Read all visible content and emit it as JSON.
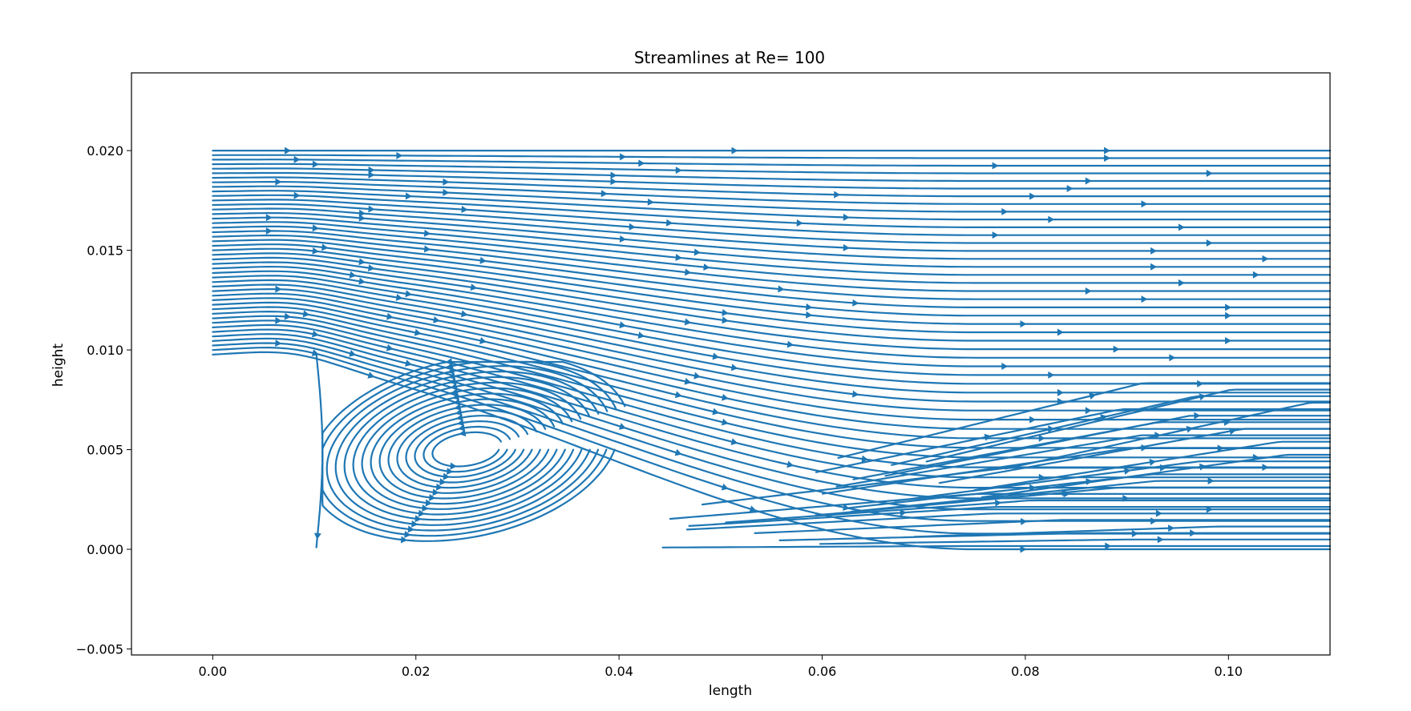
{
  "chart_data": {
    "type": "streamplot",
    "title": "Streamlines at Re= 100",
    "xlabel": "length",
    "ylabel": "height",
    "xlim": [
      -0.008,
      0.11
    ],
    "ylim": [
      -0.0053,
      0.0239
    ],
    "xticks": [
      0.0,
      0.02,
      0.04,
      0.06,
      0.08,
      0.1
    ],
    "xtick_labels": [
      "0.00",
      "0.02",
      "0.04",
      "0.06",
      "0.08",
      "0.10"
    ],
    "yticks": [
      -0.005,
      0.0,
      0.005,
      0.01,
      0.015,
      0.02
    ],
    "ytick_labels": [
      "−0.005",
      "0.000",
      "0.005",
      "0.010",
      "0.015",
      "0.020"
    ],
    "grid": false,
    "color": "#1f77b4",
    "domain": {
      "x": [
        0.0,
        0.11
      ],
      "y": [
        0.0,
        0.02
      ]
    },
    "step": {
      "x": 0.0,
      "x_end": 0.01,
      "y_top": 0.0097
    },
    "recirculation": {
      "vortex_center": [
        0.025,
        0.005
      ],
      "reattachment_x": 0.042
    }
  }
}
